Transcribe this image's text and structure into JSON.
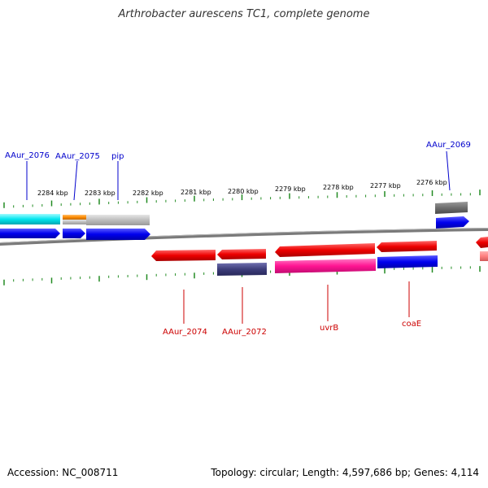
{
  "title": "Arthrobacter aurescens TC1, complete genome",
  "footer": {
    "accession": "Accession: NC_008711",
    "topology": "Topology: circular; Length: 4,597,686 bp; Genes: 4,114"
  },
  "scale": {
    "labels": [
      "2284 kbp",
      "2283 kbp",
      "2282 kbp",
      "2281 kbp",
      "2280 kbp",
      "2279 kbp",
      "2278 kbp",
      "2277 kbp",
      "2276 kbp"
    ]
  },
  "gene_labels_top": [
    "AAur_2076",
    "AAur_2075",
    "pip",
    "AAur_2069"
  ],
  "gene_labels_bottom": [
    "AAur_2074",
    "AAur_2072",
    "uvrB",
    "coaE"
  ],
  "colors": {
    "backbone": "#7a7a7a",
    "ticks": "#228b22",
    "cds": "#0000ee",
    "gene_red": "#ee0000",
    "cyan": "#00e5ee",
    "gray": "#bdbdbd",
    "dark_gray": "#6e6e6e",
    "orange": "#ff8c00",
    "navy": "#3d3d7a",
    "pink": "#ff1493",
    "light_red": "#ff7f7f"
  }
}
